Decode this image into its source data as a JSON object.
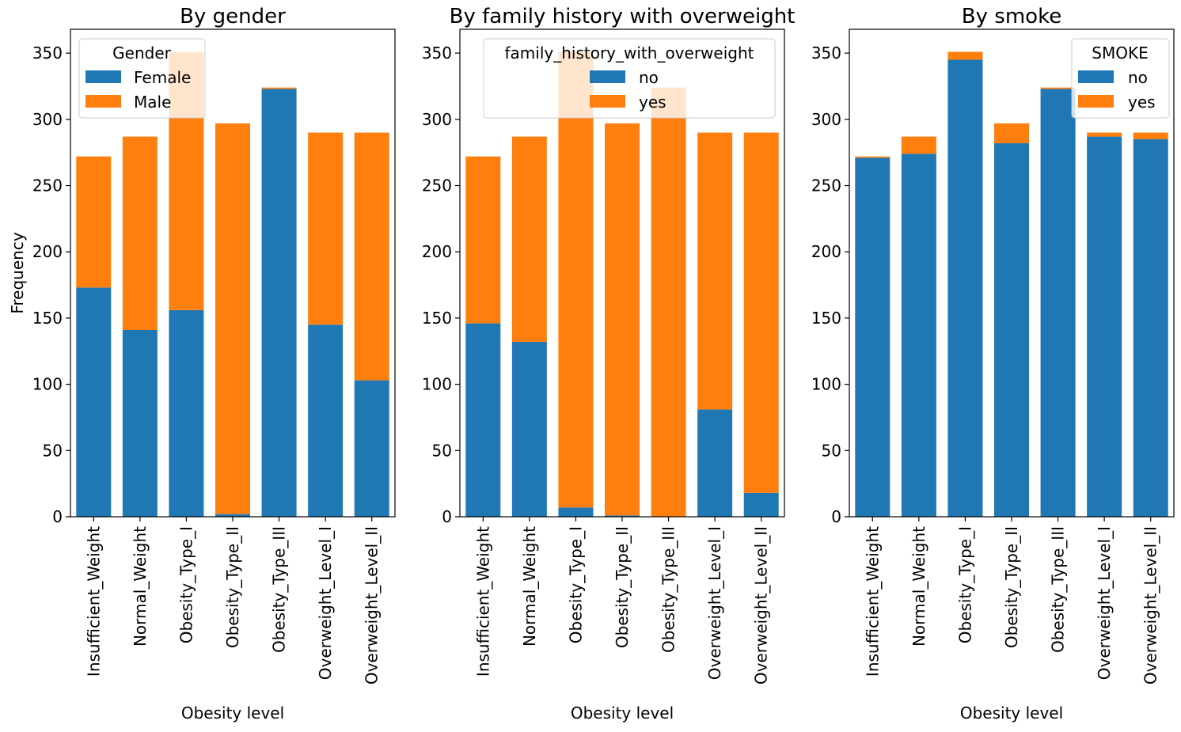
{
  "colors": {
    "series_a": "#1f77b4",
    "series_b": "#ff7f0e",
    "axis": "#000000",
    "background": "#ffffff"
  },
  "chart_data": [
    {
      "type": "bar",
      "stacked": true,
      "title": "By gender",
      "xlabel": "Obesity level",
      "ylabel": "Frequency",
      "ylim": [
        0,
        368
      ],
      "yticks": [
        0,
        50,
        100,
        150,
        200,
        250,
        300,
        350
      ],
      "grid": false,
      "legend": {
        "title": "Gender",
        "placement": "top-left"
      },
      "categories": [
        "Insufficient_Weight",
        "Normal_Weight",
        "Obesity_Type_I",
        "Obesity_Type_II",
        "Obesity_Type_III",
        "Overweight_Level_I",
        "Overweight_Level_II"
      ],
      "series": [
        {
          "name": "Female",
          "color": "#1f77b4",
          "values": [
            173,
            141,
            156,
            2,
            323,
            145,
            103
          ]
        },
        {
          "name": "Male",
          "color": "#ff7f0e",
          "values": [
            99,
            146,
            195,
            295,
            1,
            145,
            187
          ]
        }
      ]
    },
    {
      "type": "bar",
      "stacked": true,
      "title": "By family history with overweight",
      "xlabel": "Obesity level",
      "ylabel": "",
      "ylim": [
        0,
        368
      ],
      "yticks": [
        0,
        50,
        100,
        150,
        200,
        250,
        300,
        350
      ],
      "grid": false,
      "legend": {
        "title": "family_history_with_overweight",
        "placement": "top-right"
      },
      "categories": [
        "Insufficient_Weight",
        "Normal_Weight",
        "Obesity_Type_I",
        "Obesity_Type_II",
        "Obesity_Type_III",
        "Overweight_Level_I",
        "Overweight_Level_II"
      ],
      "series": [
        {
          "name": "no",
          "color": "#1f77b4",
          "values": [
            146,
            132,
            7,
            1,
            0,
            81,
            18
          ]
        },
        {
          "name": "yes",
          "color": "#ff7f0e",
          "values": [
            126,
            155,
            344,
            296,
            324,
            209,
            272
          ]
        }
      ]
    },
    {
      "type": "bar",
      "stacked": true,
      "title": "By smoke",
      "xlabel": "Obesity level",
      "ylabel": "",
      "ylim": [
        0,
        368
      ],
      "yticks": [
        0,
        50,
        100,
        150,
        200,
        250,
        300,
        350
      ],
      "grid": false,
      "legend": {
        "title": "SMOKE",
        "placement": "top-right"
      },
      "categories": [
        "Insufficient_Weight",
        "Normal_Weight",
        "Obesity_Type_I",
        "Obesity_Type_II",
        "Obesity_Type_III",
        "Overweight_Level_I",
        "Overweight_Level_II"
      ],
      "series": [
        {
          "name": "no",
          "color": "#1f77b4",
          "values": [
            271,
            274,
            345,
            282,
            323,
            287,
            285
          ]
        },
        {
          "name": "yes",
          "color": "#ff7f0e",
          "values": [
            1,
            13,
            6,
            15,
            1,
            3,
            5
          ]
        }
      ]
    }
  ]
}
